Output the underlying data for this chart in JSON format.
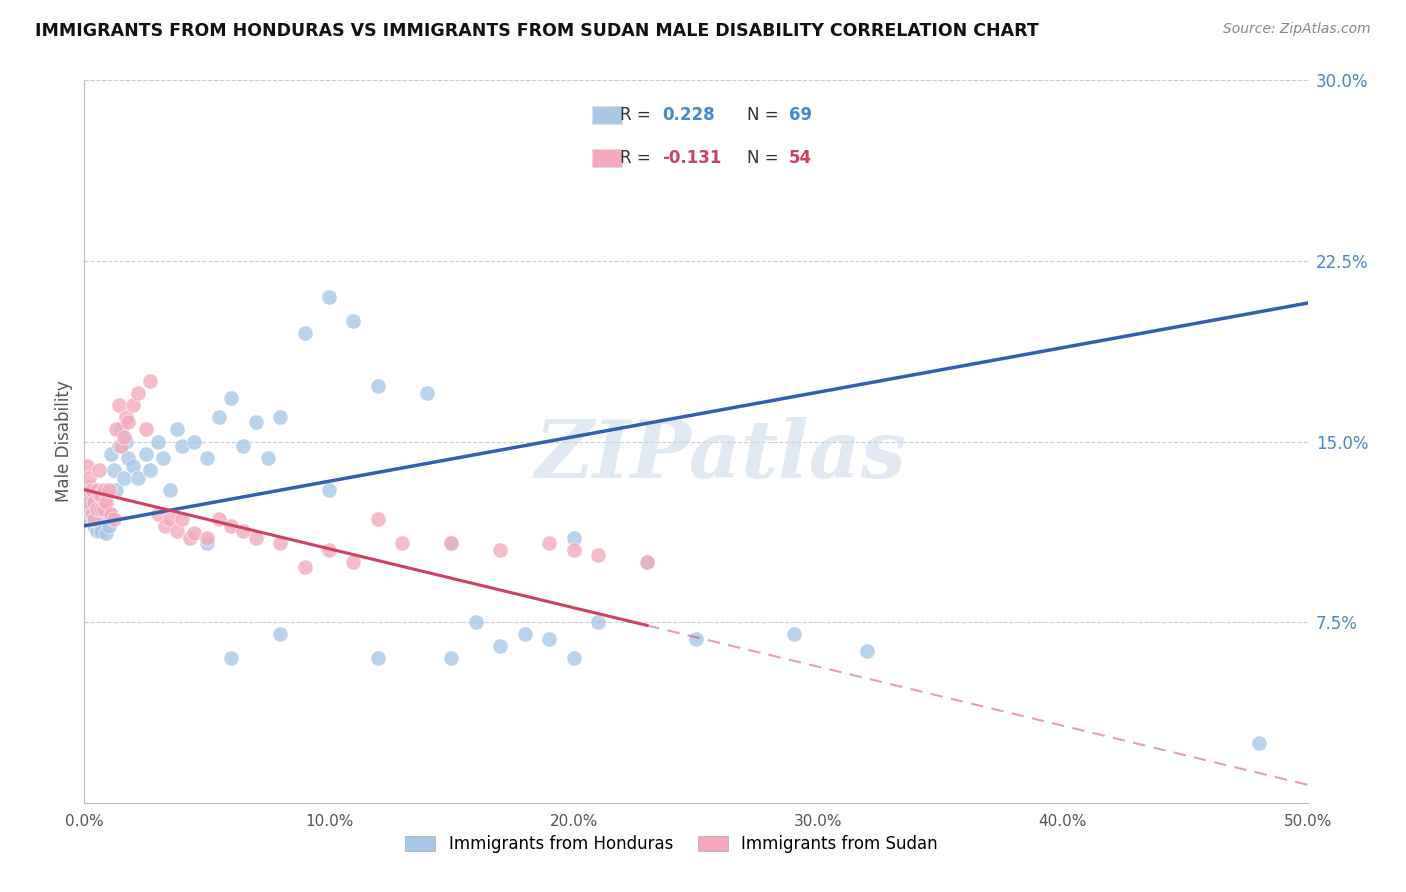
{
  "title": "IMMIGRANTS FROM HONDURAS VS IMMIGRANTS FROM SUDAN MALE DISABILITY CORRELATION CHART",
  "source": "Source: ZipAtlas.com",
  "ylabel": "Male Disability",
  "xlim": [
    0.0,
    0.5
  ],
  "ylim": [
    0.0,
    0.3
  ],
  "xticks": [
    0.0,
    0.1,
    0.2,
    0.3,
    0.4,
    0.5
  ],
  "xtick_labels": [
    "0.0%",
    "10.0%",
    "20.0%",
    "30.0%",
    "40.0%",
    "50.0%"
  ],
  "yticks_right": [
    0.075,
    0.15,
    0.225,
    0.3
  ],
  "ytick_labels_right": [
    "7.5%",
    "15.0%",
    "22.5%",
    "30.0%"
  ],
  "color_honduras": "#A8C8E8",
  "color_sudan": "#F4AABC",
  "color_line_honduras": "#3060B0",
  "color_line_sudan": "#D04060",
  "watermark": "ZIPatlas",
  "legend_r1_label": "R = ",
  "legend_r1_val": "0.228",
  "legend_n1_label": "N = ",
  "legend_n1_val": "69",
  "legend_r2_label": "R = ",
  "legend_r2_val": "-0.131",
  "legend_n2_label": "N = ",
  "legend_n2_val": "54",
  "legend_label1": "Immigrants from Honduras",
  "legend_label2": "Immigrants from Sudan",
  "honduras_x": [
    0.001,
    0.001,
    0.002,
    0.002,
    0.003,
    0.003,
    0.004,
    0.004,
    0.005,
    0.005,
    0.006,
    0.006,
    0.007,
    0.007,
    0.008,
    0.008,
    0.009,
    0.009,
    0.01,
    0.01,
    0.011,
    0.012,
    0.013,
    0.014,
    0.015,
    0.016,
    0.017,
    0.018,
    0.02,
    0.022,
    0.025,
    0.027,
    0.03,
    0.032,
    0.035,
    0.038,
    0.04,
    0.045,
    0.05,
    0.055,
    0.06,
    0.065,
    0.07,
    0.075,
    0.08,
    0.09,
    0.1,
    0.11,
    0.12,
    0.14,
    0.15,
    0.16,
    0.17,
    0.19,
    0.2,
    0.21,
    0.23,
    0.25,
    0.29,
    0.32,
    0.05,
    0.06,
    0.08,
    0.1,
    0.12,
    0.15,
    0.18,
    0.2,
    0.48
  ],
  "honduras_y": [
    0.128,
    0.122,
    0.131,
    0.118,
    0.125,
    0.12,
    0.115,
    0.118,
    0.113,
    0.117,
    0.122,
    0.116,
    0.119,
    0.113,
    0.12,
    0.125,
    0.118,
    0.112,
    0.115,
    0.12,
    0.145,
    0.138,
    0.13,
    0.148,
    0.155,
    0.135,
    0.15,
    0.143,
    0.14,
    0.135,
    0.145,
    0.138,
    0.15,
    0.143,
    0.13,
    0.155,
    0.148,
    0.15,
    0.143,
    0.16,
    0.168,
    0.148,
    0.158,
    0.143,
    0.16,
    0.195,
    0.21,
    0.2,
    0.173,
    0.17,
    0.108,
    0.075,
    0.065,
    0.068,
    0.11,
    0.075,
    0.1,
    0.068,
    0.07,
    0.063,
    0.108,
    0.06,
    0.07,
    0.13,
    0.06,
    0.06,
    0.07,
    0.06,
    0.025
  ],
  "sudan_x": [
    0.001,
    0.001,
    0.002,
    0.002,
    0.003,
    0.003,
    0.004,
    0.004,
    0.005,
    0.005,
    0.006,
    0.006,
    0.007,
    0.007,
    0.008,
    0.008,
    0.009,
    0.01,
    0.011,
    0.012,
    0.013,
    0.014,
    0.015,
    0.016,
    0.017,
    0.018,
    0.02,
    0.022,
    0.025,
    0.027,
    0.03,
    0.033,
    0.035,
    0.038,
    0.04,
    0.043,
    0.045,
    0.05,
    0.055,
    0.06,
    0.065,
    0.07,
    0.08,
    0.09,
    0.1,
    0.11,
    0.12,
    0.13,
    0.15,
    0.17,
    0.19,
    0.2,
    0.21,
    0.23
  ],
  "sudan_y": [
    0.14,
    0.13,
    0.135,
    0.125,
    0.13,
    0.12,
    0.125,
    0.118,
    0.13,
    0.122,
    0.138,
    0.128,
    0.128,
    0.122,
    0.13,
    0.122,
    0.125,
    0.13,
    0.12,
    0.118,
    0.155,
    0.165,
    0.148,
    0.152,
    0.16,
    0.158,
    0.165,
    0.17,
    0.155,
    0.175,
    0.12,
    0.115,
    0.118,
    0.113,
    0.118,
    0.11,
    0.112,
    0.11,
    0.118,
    0.115,
    0.113,
    0.11,
    0.108,
    0.098,
    0.105,
    0.1,
    0.118,
    0.108,
    0.108,
    0.105,
    0.108,
    0.105,
    0.103,
    0.1
  ]
}
